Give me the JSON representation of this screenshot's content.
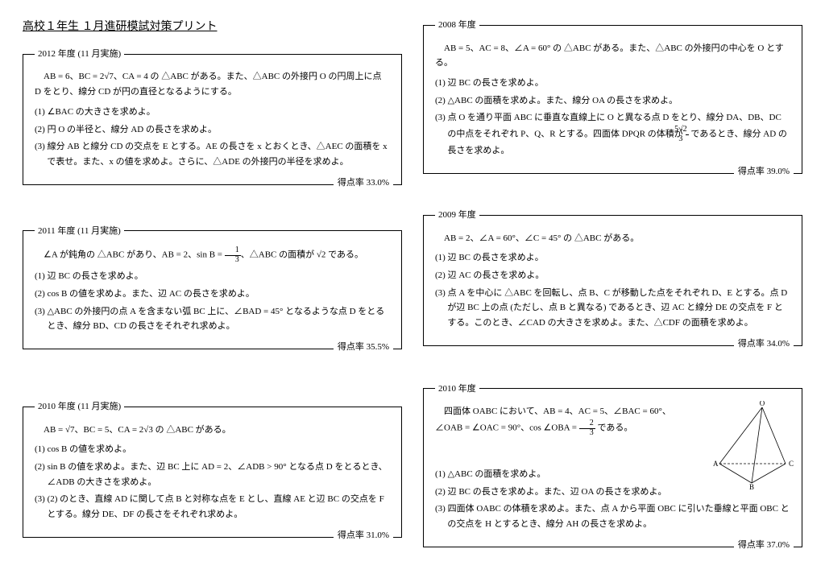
{
  "title": "高校１年生 １月進研模試対策プリント",
  "left": [
    {
      "legend": "2012 年度 (11 月実施)",
      "intro": "AB = 6、BC = 2√7、CA = 4 の △ABC がある。また、△ABC の外接円 O の円周上に点 D をとり、線分 CD が円の直径となるようにする。",
      "qs": [
        "(1) ∠BAC の大きさを求めよ。",
        "(2) 円 O の半径と、線分 AD の長さを求めよ。",
        "(3) 線分 AB と線分 CD の交点を E とする。AE の長さを x とおくとき、△AEC の面積を x で表せ。また、x の値を求めよ。さらに、△ADE の外接円の半径を求めよ。"
      ],
      "score": "得点率 33.0%"
    },
    {
      "legend": "2011 年度 (11 月実施)",
      "intro_html": "∠A が鈍角の △ABC があり、AB = 2、sin B = <span class=\"frac\"><span class=\"n\">1</span><span class=\"d\">3</span></span>、△ABC の面積が √2 である。",
      "qs": [
        "(1) 辺 BC の長さを求めよ。",
        "(2) cos B の値を求めよ。また、辺 AC の長さを求めよ。",
        "(3) △ABC の外接円の点 A を含まない弧 BC 上に、∠BAD = 45° となるような点 D をとるとき、線分 BD、CD の長さをそれぞれ求めよ。"
      ],
      "score": "得点率 35.5%"
    },
    {
      "legend": "2010 年度 (11 月実施)",
      "intro": "AB = √7、BC = 5、CA = 2√3 の △ABC がある。",
      "qs": [
        "(1) cos B の値を求めよ。",
        "(2) sin B の値を求めよ。また、辺 BC 上に AD = 2、∠ADB > 90° となる点 D をとるとき、∠ADB の大きさを求めよ。",
        "(3) (2) のとき、直線 AD に関して点 B と対称な点を E とし、直線 AE と辺 BC の交点を F とする。線分 DE、DF の長さをそれぞれ求めよ。"
      ],
      "score": "得点率 31.0%"
    }
  ],
  "right": [
    {
      "legend": "2008 年度",
      "intro": "AB = 5、AC = 8、∠A = 60° の △ABC がある。また、△ABC の外接円の中心を O とする。",
      "qs": [
        "(1) 辺 BC の長さを求めよ。",
        "(2) △ABC の面積を求めよ。また、線分 OA の長さを求めよ。"
      ],
      "q3_html": "(3) 点 O を通り平面 ABC に垂直な直線上に O と異なる点 D をとり、線分 DA、DB、DC の中点をそれぞれ P、Q、R とする。四面体 DPQR の体積が <span class=\"frac\"><span class=\"n\">5√2</span><span class=\"d\">3</span></span> であるとき、線分 AD の長さを求めよ。",
      "score": "得点率 39.0%"
    },
    {
      "legend": "2009 年度",
      "intro": "AB = 2、∠A = 60°、∠C = 45° の △ABC がある。",
      "qs": [
        "(1) 辺 BC の長さを求めよ。",
        "(2) 辺 AC の長さを求めよ。",
        "(3) 点 A を中心に △ABC を回転し、点 B、C が移動した点をそれぞれ D、E とする。点 D が辺 BC 上の点 (ただし、点 B と異なる) であるとき、辺 AC と線分 DE の交点を F とする。このとき、∠CAD の大きさを求めよ。また、△CDF の面積を求めよ。"
      ],
      "score": "得点率 34.0%"
    },
    {
      "legend": "2010 年度",
      "intro_html": "四面体 OABC において、AB = 4、AC = 5、∠BAC = 60°、∠OAB = ∠OAC = 90°、cos ∠OBA = <span class=\"frac\"><span class=\"n\">2</span><span class=\"d\">3</span></span> である。",
      "qs": [
        "(1) △ABC の面積を求めよ。",
        "(2) 辺 BC の長さを求めよ。また、辺 OA の長さを求めよ。",
        "(3) 四面体 OABC の体積を求めよ。また、点 A から平面 OBC に引いた垂線と平面 OBC との交点を H とするとき、線分 AH の長さを求めよ。"
      ],
      "score": "得点率 37.0%",
      "diagram": true
    }
  ],
  "diagram": {
    "labels": {
      "O": "O",
      "A": "A",
      "B": "B",
      "C": "C"
    },
    "stroke": "#000"
  }
}
